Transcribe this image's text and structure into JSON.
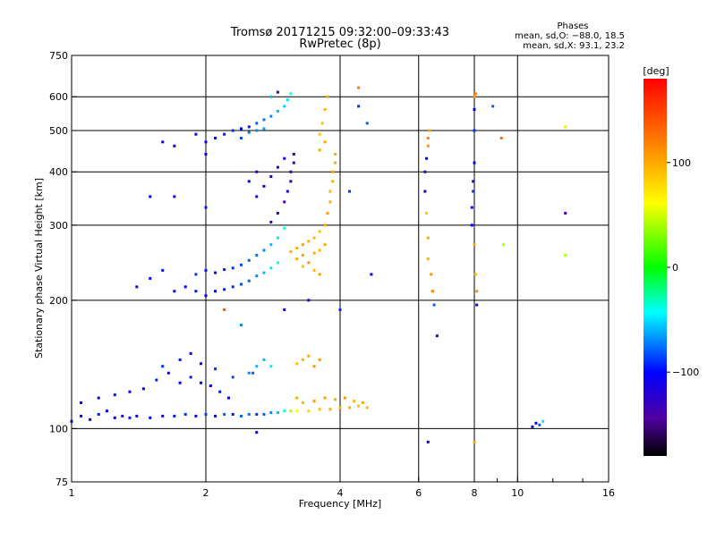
{
  "header": {
    "title_line1": "Tromsø 20171215 09:32:00–09:33:43",
    "title_line2": "RwPretec (8p)"
  },
  "stats": {
    "heading": "Phases",
    "line_o": "mean, sd,O: −88.0, 18.5",
    "line_x": "mean, sd,X:  93.1, 23.2"
  },
  "colorbar": {
    "label": "[deg]",
    "ticks": [
      "100",
      "0",
      "−100"
    ],
    "tick_values": [
      100,
      0,
      -100
    ],
    "range": [
      -180,
      180
    ]
  },
  "chart_data": {
    "type": "scatter",
    "xlabel": "Frequency [MHz]",
    "ylabel": "Stationary phase Virtual Height [km]",
    "x_scale": "log",
    "y_scale": "log",
    "xlim": [
      1,
      16
    ],
    "ylim": [
      75,
      750
    ],
    "x_ticks": [
      1,
      2,
      4,
      6,
      8,
      10,
      16
    ],
    "x_tick_labels": [
      "1",
      "2",
      "4",
      "6",
      "8",
      "10",
      "16"
    ],
    "x_minor_ticks": [
      9,
      12,
      14
    ],
    "y_ticks": [
      75,
      100,
      200,
      300,
      400,
      500,
      600,
      750
    ],
    "y_tick_labels": [
      "75",
      "100",
      "200",
      "300",
      "400",
      "500",
      "600",
      "750"
    ],
    "grid": true,
    "series": [
      {
        "points": [
          [
            1.0,
            104,
            -105
          ],
          [
            1.05,
            107,
            -100
          ],
          [
            1.1,
            105,
            -110
          ],
          [
            1.15,
            108,
            -95
          ],
          [
            1.2,
            110,
            -105
          ],
          [
            1.25,
            106,
            -100
          ],
          [
            1.3,
            107,
            -110
          ],
          [
            1.35,
            106,
            -95
          ],
          [
            1.4,
            107,
            -105
          ],
          [
            1.5,
            106,
            -100
          ],
          [
            1.6,
            107,
            -110
          ],
          [
            1.7,
            107,
            -95
          ],
          [
            1.8,
            108,
            -90
          ],
          [
            1.9,
            107,
            -105
          ],
          [
            2.0,
            108,
            -85
          ],
          [
            2.1,
            107,
            -100
          ],
          [
            2.2,
            108,
            -80
          ],
          [
            2.3,
            108,
            -95
          ],
          [
            2.4,
            107,
            -80
          ],
          [
            2.5,
            108,
            -75
          ],
          [
            2.6,
            108,
            -90
          ],
          [
            2.7,
            108,
            -80
          ],
          [
            2.8,
            109,
            -70
          ],
          [
            2.9,
            109,
            -60
          ],
          [
            3.0,
            110,
            -40
          ],
          [
            3.1,
            110,
            40
          ],
          [
            3.2,
            110,
            60
          ],
          [
            3.4,
            110,
            80
          ],
          [
            3.6,
            111,
            90
          ],
          [
            3.8,
            111,
            100
          ],
          [
            4.0,
            112,
            95
          ],
          [
            4.2,
            112,
            100
          ],
          [
            4.4,
            113,
            90
          ],
          [
            4.6,
            112,
            95
          ],
          [
            1.05,
            115,
            -100
          ],
          [
            1.15,
            118,
            -105
          ],
          [
            1.25,
            120,
            -95
          ],
          [
            1.35,
            122,
            -110
          ],
          [
            1.45,
            124,
            -100
          ],
          [
            1.55,
            130,
            -95
          ],
          [
            1.65,
            135,
            -105
          ],
          [
            1.75,
            128,
            -100
          ],
          [
            1.85,
            132,
            -95
          ],
          [
            1.95,
            128,
            -100
          ],
          [
            2.05,
            126,
            -105
          ],
          [
            2.15,
            122,
            -95
          ],
          [
            2.25,
            118,
            -100
          ],
          [
            1.6,
            140,
            -90
          ],
          [
            1.75,
            145,
            -95
          ],
          [
            1.85,
            150,
            -105
          ],
          [
            1.95,
            142,
            -100
          ],
          [
            2.1,
            138,
            -90
          ],
          [
            2.3,
            132,
            -85
          ],
          [
            2.5,
            135,
            -70
          ],
          [
            2.6,
            140,
            -60
          ],
          [
            2.7,
            145,
            -60
          ],
          [
            2.8,
            140,
            -50
          ],
          [
            2.55,
            135,
            -80
          ],
          [
            3.2,
            142,
            90
          ],
          [
            3.3,
            145,
            95
          ],
          [
            3.4,
            148,
            100
          ],
          [
            3.5,
            140,
            110
          ],
          [
            3.6,
            145,
            105
          ],
          [
            3.2,
            118,
            100
          ],
          [
            3.3,
            115,
            95
          ],
          [
            3.5,
            116,
            110
          ],
          [
            3.7,
            118,
            105
          ],
          [
            3.9,
            117,
            100
          ],
          [
            4.1,
            118,
            110
          ],
          [
            4.3,
            116,
            95
          ],
          [
            4.5,
            115,
            100
          ],
          [
            1.4,
            215,
            -105
          ],
          [
            1.5,
            225,
            -100
          ],
          [
            1.6,
            235,
            -95
          ],
          [
            1.7,
            210,
            -110
          ],
          [
            1.8,
            215,
            -100
          ],
          [
            1.9,
            210,
            -95
          ],
          [
            2.0,
            205,
            -105
          ],
          [
            2.1,
            210,
            -100
          ],
          [
            2.2,
            212,
            -95
          ],
          [
            2.3,
            215,
            -90
          ],
          [
            2.4,
            218,
            -85
          ],
          [
            2.5,
            222,
            -80
          ],
          [
            2.6,
            228,
            -70
          ],
          [
            2.7,
            232,
            -60
          ],
          [
            2.8,
            238,
            -50
          ],
          [
            2.9,
            245,
            -40
          ],
          [
            1.9,
            230,
            -90
          ],
          [
            2.0,
            235,
            -95
          ],
          [
            2.1,
            232,
            -100
          ],
          [
            2.2,
            236,
            -95
          ],
          [
            2.3,
            238,
            -90
          ],
          [
            2.4,
            242,
            -85
          ],
          [
            2.5,
            248,
            -80
          ],
          [
            2.6,
            255,
            -75
          ],
          [
            2.7,
            262,
            -70
          ],
          [
            2.8,
            270,
            -60
          ],
          [
            2.9,
            280,
            -50
          ],
          [
            3.0,
            295,
            -40
          ],
          [
            2.8,
            305,
            -120
          ],
          [
            2.9,
            320,
            -125
          ],
          [
            3.0,
            340,
            -130
          ],
          [
            3.05,
            360,
            -120
          ],
          [
            3.1,
            380,
            -125
          ],
          [
            3.1,
            400,
            -130
          ],
          [
            3.15,
            420,
            -120
          ],
          [
            3.15,
            440,
            -125
          ],
          [
            2.6,
            350,
            -110
          ],
          [
            2.7,
            370,
            -115
          ],
          [
            2.8,
            390,
            -120
          ],
          [
            2.9,
            410,
            -110
          ],
          [
            3.0,
            430,
            -115
          ],
          [
            2.5,
            380,
            -100
          ],
          [
            2.6,
            400,
            -110
          ],
          [
            2.0,
            470,
            -110
          ],
          [
            2.1,
            480,
            -100
          ],
          [
            2.2,
            490,
            -95
          ],
          [
            2.3,
            500,
            -90
          ],
          [
            2.4,
            505,
            -100
          ],
          [
            2.5,
            510,
            -95
          ],
          [
            2.6,
            520,
            -80
          ],
          [
            2.7,
            530,
            -75
          ],
          [
            2.8,
            540,
            -70
          ],
          [
            2.9,
            555,
            -60
          ],
          [
            3.0,
            570,
            -55
          ],
          [
            3.05,
            590,
            -50
          ],
          [
            3.1,
            610,
            -45
          ],
          [
            2.4,
            480,
            -85
          ],
          [
            2.5,
            495,
            -75
          ],
          [
            2.6,
            500,
            -70
          ],
          [
            2.7,
            505,
            -65
          ],
          [
            1.6,
            470,
            -105
          ],
          [
            1.7,
            460,
            -110
          ],
          [
            1.9,
            490,
            -100
          ],
          [
            2.0,
            440,
            -105
          ],
          [
            1.5,
            350,
            -100
          ],
          [
            1.7,
            350,
            -110
          ],
          [
            2.0,
            330,
            -95
          ],
          [
            3.1,
            260,
            95
          ],
          [
            3.2,
            265,
            100
          ],
          [
            3.3,
            270,
            105
          ],
          [
            3.4,
            275,
            100
          ],
          [
            3.5,
            280,
            95
          ],
          [
            3.6,
            290,
            90
          ],
          [
            3.7,
            300,
            100
          ],
          [
            3.75,
            320,
            105
          ],
          [
            3.8,
            340,
            100
          ],
          [
            3.8,
            360,
            95
          ],
          [
            3.85,
            380,
            100
          ],
          [
            3.85,
            400,
            105
          ],
          [
            3.9,
            420,
            100
          ],
          [
            3.9,
            440,
            95
          ],
          [
            3.2,
            250,
            100
          ],
          [
            3.3,
            255,
            105
          ],
          [
            3.4,
            245,
            110
          ],
          [
            3.5,
            258,
            100
          ],
          [
            3.6,
            262,
            95
          ],
          [
            3.7,
            270,
            100
          ],
          [
            3.3,
            240,
            90
          ],
          [
            3.5,
            235,
            95
          ],
          [
            3.6,
            230,
            105
          ],
          [
            3.6,
            490,
            85
          ],
          [
            3.65,
            520,
            90
          ],
          [
            3.7,
            560,
            95
          ],
          [
            3.75,
            600,
            100
          ],
          [
            3.6,
            450,
            100
          ],
          [
            3.7,
            470,
            105
          ],
          [
            6.2,
            360,
            -110
          ],
          [
            6.2,
            400,
            -120
          ],
          [
            6.25,
            430,
            -100
          ],
          [
            6.3,
            460,
            110
          ],
          [
            6.3,
            480,
            120
          ],
          [
            6.35,
            500,
            100
          ],
          [
            6.25,
            320,
            90
          ],
          [
            6.3,
            280,
            100
          ],
          [
            6.3,
            250,
            95
          ],
          [
            6.4,
            230,
            110
          ],
          [
            6.45,
            210,
            120
          ],
          [
            6.5,
            195,
            -80
          ],
          [
            6.6,
            165,
            -120
          ],
          [
            6.3,
            93,
            -120
          ],
          [
            7.9,
            300,
            -100
          ],
          [
            7.9,
            330,
            -110
          ],
          [
            7.95,
            360,
            -90
          ],
          [
            7.95,
            380,
            -120
          ],
          [
            8.0,
            420,
            -105
          ],
          [
            8.0,
            500,
            -90
          ],
          [
            8.0,
            560,
            -100
          ],
          [
            8.0,
            600,
            110
          ],
          [
            8.05,
            610,
            120
          ],
          [
            8.0,
            270,
            100
          ],
          [
            8.05,
            230,
            95
          ],
          [
            8.1,
            210,
            110
          ],
          [
            8.1,
            195,
            -110
          ],
          [
            8.0,
            93,
            100
          ],
          [
            8.8,
            570,
            -80
          ],
          [
            9.2,
            480,
            130
          ],
          [
            9.3,
            270,
            40
          ],
          [
            10.8,
            101,
            -110
          ],
          [
            11.0,
            103,
            -100
          ],
          [
            11.2,
            102,
            -80
          ],
          [
            11.4,
            104,
            -50
          ],
          [
            12.8,
            510,
            50
          ],
          [
            12.8,
            320,
            -140
          ],
          [
            12.8,
            255,
            40
          ],
          [
            4.2,
            360,
            -90
          ],
          [
            4.4,
            630,
            120
          ],
          [
            4.4,
            570,
            -90
          ],
          [
            4.7,
            230,
            -100
          ],
          [
            4.6,
            520,
            -80
          ],
          [
            2.8,
            600,
            -60
          ],
          [
            2.9,
            615,
            -120
          ],
          [
            2.2,
            190,
            140
          ],
          [
            2.4,
            175,
            -70
          ],
          [
            3.0,
            190,
            -120
          ],
          [
            3.4,
            200,
            -110
          ],
          [
            4.0,
            190,
            -90
          ],
          [
            2.6,
            98,
            -100
          ]
        ]
      }
    ]
  }
}
